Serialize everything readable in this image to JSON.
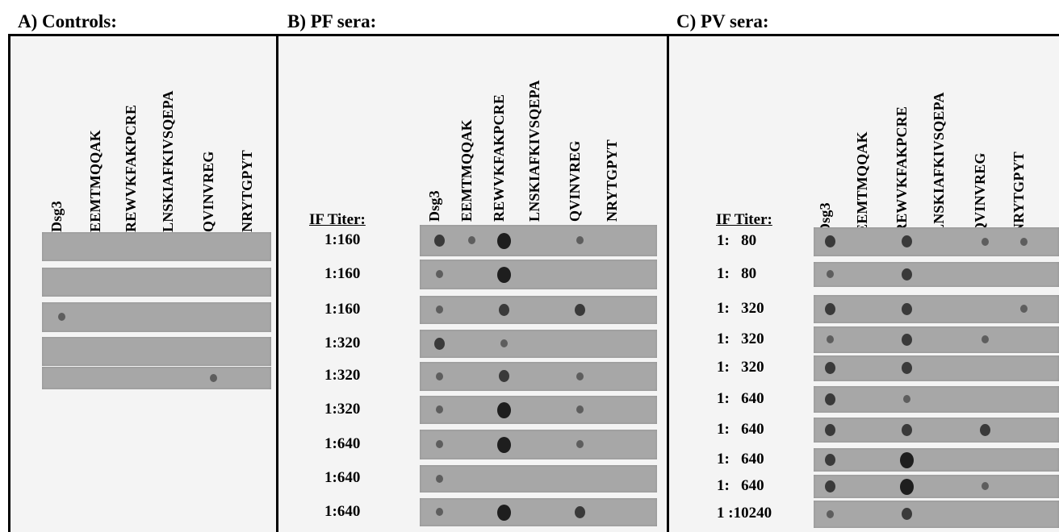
{
  "panels": {
    "a": {
      "title": "A) Controls:"
    },
    "b": {
      "title": "B) PF sera:",
      "titer_header": "IF Titer:",
      "titers": [
        "1:160",
        "1:160",
        "1:160",
        "1:320",
        "1:320",
        "1:320",
        "1:640",
        "1:640",
        "1:640"
      ]
    },
    "c": {
      "title": "C) PV sera:",
      "titer_header": "IF Titer:",
      "titers": [
        "1:   80",
        "1:   80",
        "1:   320",
        "1:   320",
        "1:   320",
        "1:   640",
        "1:   640",
        "1:   640",
        "1:   640",
        "1 :10240"
      ]
    }
  },
  "peptides": [
    "Dsg3",
    "EEMTMQQAK",
    "REWVKFAKPCRE",
    "LNSKIAFKIVSQEPA",
    "QVINVREG",
    "NRYTGPYT"
  ],
  "colors": {
    "strip": "#a7a7a7",
    "spot": "#2a2a2a",
    "frame_bg": "#f4f4f4",
    "border": "#000000"
  },
  "spot_intensity_note_scale": "0 none, 1 faint, 2 medium, 3 strong",
  "strips": {
    "a": [
      [
        0,
        0,
        0,
        0,
        0,
        0
      ],
      [
        0,
        0,
        0,
        0,
        0,
        0
      ],
      [
        1,
        0,
        0,
        0,
        0,
        0
      ],
      [
        0,
        0,
        0,
        0,
        0,
        0
      ],
      [
        0,
        0,
        0,
        0,
        1,
        0
      ]
    ],
    "b": [
      [
        2,
        1,
        3,
        0,
        1,
        0
      ],
      [
        1,
        0,
        3,
        0,
        0,
        0
      ],
      [
        1,
        0,
        2,
        0,
        2,
        0
      ],
      [
        2,
        0,
        1,
        0,
        0,
        0
      ],
      [
        1,
        0,
        2,
        0,
        1,
        0
      ],
      [
        1,
        0,
        3,
        0,
        1,
        0
      ],
      [
        1,
        0,
        3,
        0,
        1,
        0
      ],
      [
        1,
        0,
        0,
        0,
        0,
        0
      ],
      [
        1,
        0,
        3,
        0,
        2,
        0
      ]
    ],
    "c": [
      [
        2,
        0,
        2,
        0,
        1,
        1
      ],
      [
        1,
        0,
        2,
        0,
        0,
        0
      ],
      [
        2,
        0,
        2,
        0,
        0,
        1
      ],
      [
        1,
        0,
        2,
        0,
        1,
        0
      ],
      [
        2,
        0,
        2,
        0,
        0,
        0
      ],
      [
        2,
        0,
        1,
        0,
        0,
        0
      ],
      [
        2,
        0,
        2,
        0,
        2,
        0
      ],
      [
        2,
        0,
        3,
        0,
        0,
        0
      ],
      [
        2,
        0,
        3,
        0,
        1,
        0
      ],
      [
        1,
        0,
        2,
        0,
        0,
        0
      ]
    ]
  }
}
